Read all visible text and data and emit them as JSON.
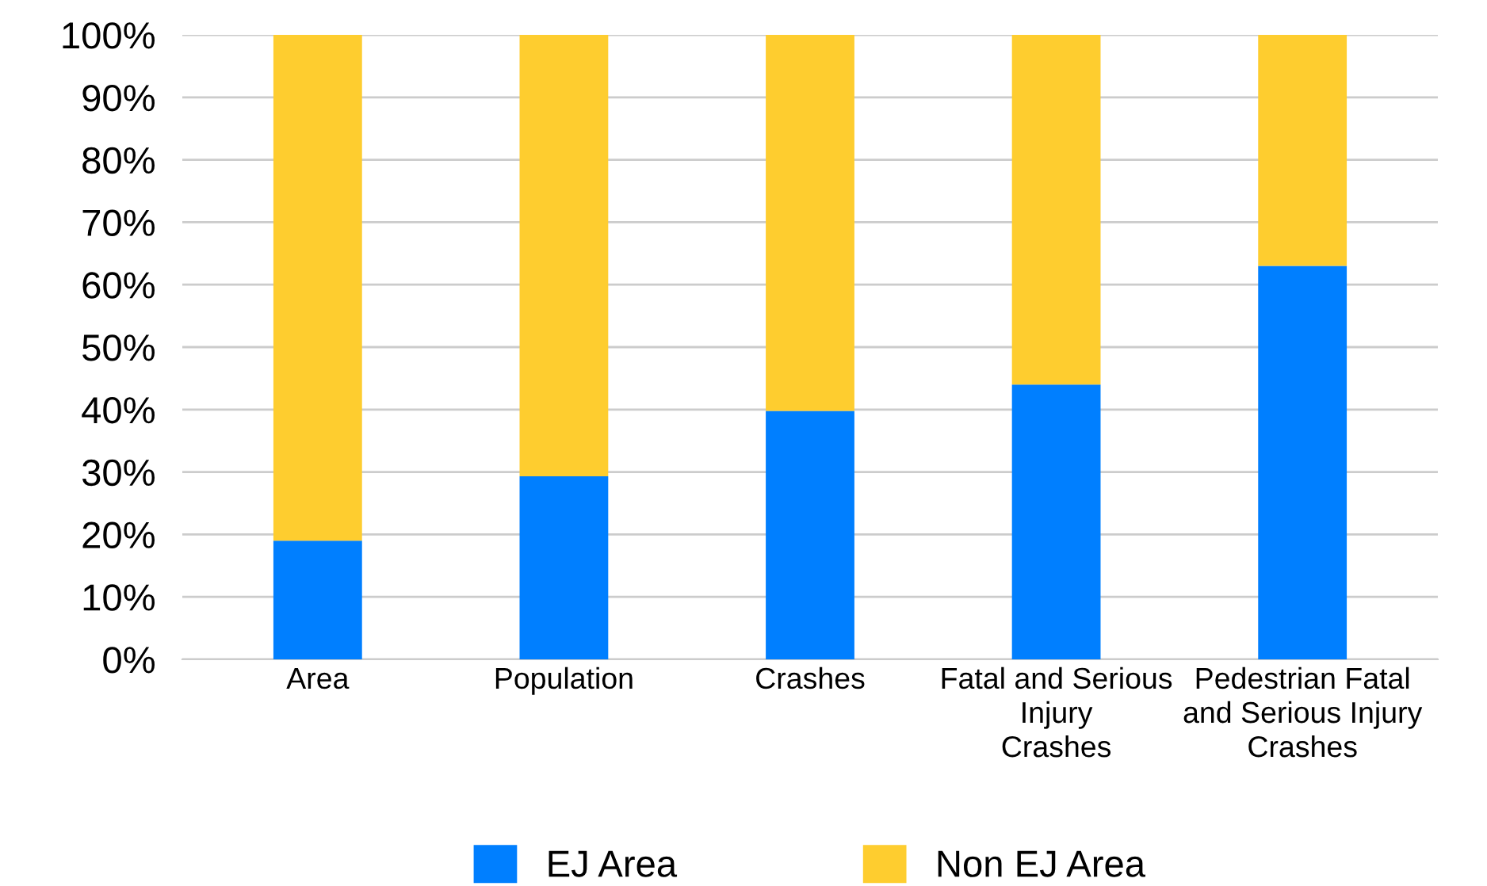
{
  "chart_data": {
    "type": "bar",
    "stacked": true,
    "categories": [
      "Area",
      "Population",
      "Crashes",
      "Fatal and Serious\nInjury\nCrashes",
      "Pedestrian Fatal\nand Serious Injury\nCrashes"
    ],
    "series": [
      {
        "name": "EJ Area",
        "color": "#007fff",
        "values": [
          19,
          29.3,
          39.8,
          44,
          63
        ]
      },
      {
        "name": "Non EJ Area",
        "color": "#fecd2f",
        "values": [
          81,
          70.7,
          60.2,
          56,
          37
        ]
      }
    ],
    "ylim": [
      0,
      100
    ],
    "yticks": [
      {
        "value": 0,
        "label": "0%"
      },
      {
        "value": 10,
        "label": "10%"
      },
      {
        "value": 20,
        "label": "20%"
      },
      {
        "value": 30,
        "label": "30%"
      },
      {
        "value": 40,
        "label": "40%"
      },
      {
        "value": 50,
        "label": "50%"
      },
      {
        "value": 60,
        "label": "60%"
      },
      {
        "value": 70,
        "label": "70%"
      },
      {
        "value": 80,
        "label": "80%"
      },
      {
        "value": 90,
        "label": "90%"
      },
      {
        "value": 100,
        "label": "100%"
      }
    ],
    "grid": "y",
    "legend": "bottom"
  }
}
